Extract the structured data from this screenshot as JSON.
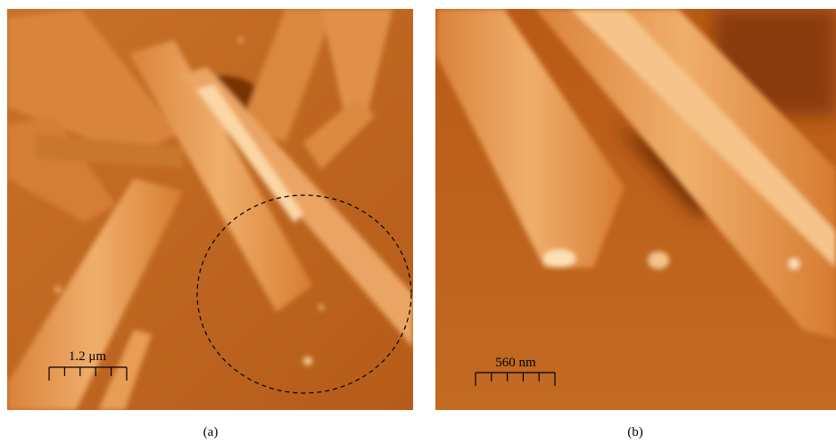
{
  "panels": [
    {
      "label": "(a)",
      "scale_bar": "1.2 μm"
    },
    {
      "label": "(b)",
      "scale_bar": "560 nm"
    }
  ]
}
